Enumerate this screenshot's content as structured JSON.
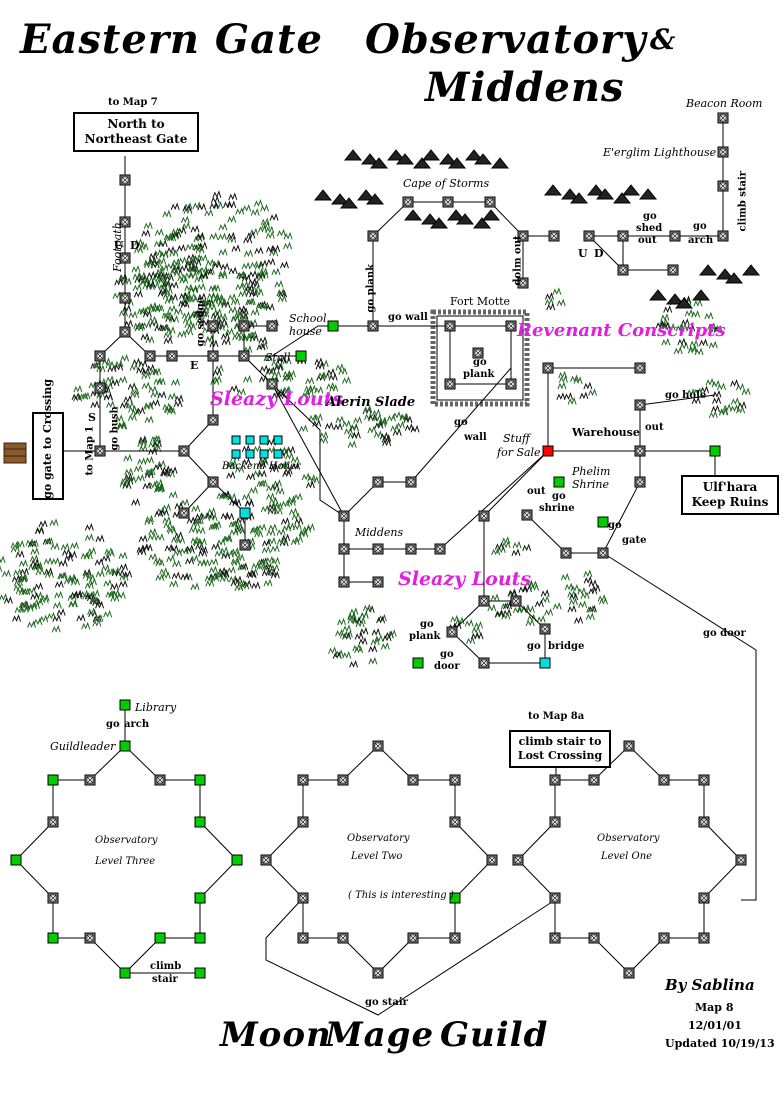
{
  "title": {
    "eastern_gate": "Eastern Gate",
    "observatory": "Observatory",
    "ampersand": "&",
    "middens": "Middens",
    "footer": [
      "Moon",
      "Mage",
      "Guild"
    ]
  },
  "credits": {
    "by": "By Sablina",
    "map": "Map 8",
    "date": "12/01/01",
    "updated": "Updated 10/19/13"
  },
  "boxes": {
    "north": "North to Northeast Gate",
    "crossing": "go gate to Crossing",
    "ulfhara": "Ulf'hara Keep Ruins",
    "lost_crossing": "climb stair to Lost Crossing"
  },
  "areas": {
    "sleazy_louts_1": "Sleazy Louts",
    "revenant_conscripts": "Revenant Conscripts",
    "sleazy_louts_2": "Sleazy Louts",
    "alerin_slade": "Alerin Slade"
  },
  "labels": {
    "to_map7": "to Map 7",
    "to_map1": "to Map 1",
    "to_map8a": "to Map 8a",
    "beacon_room": "Beacon Room",
    "lighthouse": "E'erglim Lighthouse",
    "cape": "Cape of Storms",
    "fort_motte": "Fort Motte",
    "school_house_1": "School",
    "school_house_2": "house",
    "stall": "Stall",
    "footpath": "Footpath",
    "backend_holler": "Backend Holler",
    "middens": "Middens",
    "stuff1": "Stuff",
    "stuff2": "for Sale",
    "warehouse": "Warehouse",
    "phelim1": "Phelim",
    "phelim2": "Shrine",
    "library": "Library",
    "guildleader": "Guildleader",
    "obs3_a": "Observatory",
    "obs3_b": "Level Three",
    "obs2_a": "Observatory",
    "obs2_b": "Level Two",
    "obs1_a": "Observatory",
    "obs1_b": "Level One",
    "interesting": "( This is interesting )"
  },
  "actions": {
    "u": "U",
    "d": "D",
    "e": "E",
    "s": "S",
    "go_bush": "go bush",
    "go_sedge": "go sedge",
    "go_plank_v": "go plank",
    "go_wall": "go wall",
    "go_wall2": "go",
    "go_wall2b": "wall",
    "go_plank1": "go",
    "go_plank1b": "plank",
    "dolm_out": "dolm out",
    "u2": "U",
    "d2": "D",
    "go_shed1": "go",
    "go_shed2": "shed",
    "out1": "out",
    "go_arch1": "go",
    "go_arch2": "arch",
    "climb_stair_v": "climb stair",
    "go_hole": "go hole",
    "out2": "out",
    "out3": "out",
    "go_shrine1": "go",
    "go_shrine2": "shrine",
    "go_gate1": "go",
    "go_gate2": "gate",
    "go_door": "go door",
    "go_plank2a": "go",
    "go_plank2b": "plank",
    "go_door2a": "go",
    "go_door2b": "door",
    "go_bridge": "go",
    "go_bridge2": "bridge",
    "go_arch_lib1": "go",
    "go_arch_lib2": "arch",
    "climb_stair1": "climb",
    "climb_stair2": "stair",
    "go_stair": "go stair"
  },
  "colors": {
    "room": "#808080",
    "green": "#00cc00",
    "red": "#ff0000",
    "cyan": "#00e0e0",
    "magenta": "#e020e0"
  }
}
